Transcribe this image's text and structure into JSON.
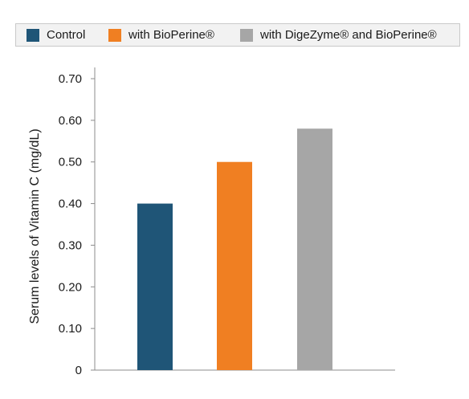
{
  "chart_data": {
    "type": "bar",
    "categories": [
      "Control",
      "with BioPerine®",
      "with DigeZyme® and BioPerine®"
    ],
    "series": [
      {
        "name": "Serum levels of Vitamin C (mg/dL)",
        "values": [
          0.4,
          0.5,
          0.58
        ]
      }
    ],
    "colors": [
      "#1f5577",
      "#f07f22",
      "#a6a6a6"
    ],
    "title": "",
    "xlabel": "",
    "ylabel": "Serum levels of Vitamin C (mg/dL)",
    "ylim": [
      0,
      0.7
    ],
    "yticks": [
      0,
      0.1,
      0.2,
      0.3,
      0.4,
      0.5,
      0.6,
      0.7
    ],
    "ytick_labels": [
      "0",
      "0.10",
      "0.20",
      "0.30",
      "0.40",
      "0.50",
      "0.60",
      "0.70"
    ],
    "grid": false,
    "legend_position": "top"
  },
  "legend": {
    "items": [
      {
        "label": "Control",
        "color": "#1f5577"
      },
      {
        "label": "with BioPerine®",
        "color": "#f07f22"
      },
      {
        "label": "with DigeZyme® and BioPerine®",
        "color": "#a6a6a6"
      }
    ]
  }
}
